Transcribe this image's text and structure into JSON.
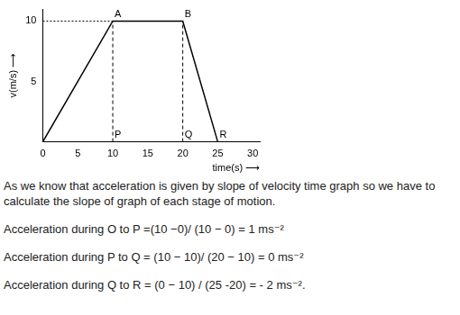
{
  "chart_data": {
    "type": "line",
    "x_label": "time(s) ⟶",
    "y_label": "v(m/s) ⟶",
    "series": [
      {
        "x": [
          0,
          10,
          20,
          25
        ],
        "values": [
          0,
          10,
          10,
          0
        ],
        "color": "#000000",
        "line_style": "solid"
      },
      {
        "x": [
          0,
          10
        ],
        "values": [
          10,
          10
        ],
        "color": "#000000",
        "line_style": "dotted"
      },
      {
        "x": [
          10,
          10
        ],
        "values": [
          0,
          10
        ],
        "color": "#000000",
        "line_style": "dashed"
      },
      {
        "x": [
          20,
          20
        ],
        "values": [
          0,
          10
        ],
        "color": "#000000",
        "line_style": "dashed"
      }
    ],
    "annotations": [
      {
        "text": "A",
        "x": 10,
        "y": 10
      },
      {
        "text": "B",
        "x": 20,
        "y": 10
      },
      {
        "text": "P",
        "x": 10,
        "y": 0
      },
      {
        "text": "Q",
        "x": 20,
        "y": 0
      },
      {
        "text": "R",
        "x": 25,
        "y": 0
      }
    ],
    "xlim": [
      0,
      31
    ],
    "xticks": [
      0,
      5,
      10,
      15,
      20,
      25,
      30
    ],
    "ylim": [
      0,
      11
    ],
    "yticks": [
      5,
      10
    ],
    "grid": false
  },
  "text": [
    "As we know that acceleration is given by slope of velocity time graph so we have to calculate  the slope of graph of each stage of motion.",
    "Acceleration during O to P  =(10 −0)/ (10 − 0) = 1 ms⁻²",
    "Acceleration during P to Q = (10 − 10)/ (20 − 10) = 0 ms⁻²",
    "Acceleration during Q to R = (0 − 10) / (25 -20) = - 2 ms⁻²."
  ]
}
